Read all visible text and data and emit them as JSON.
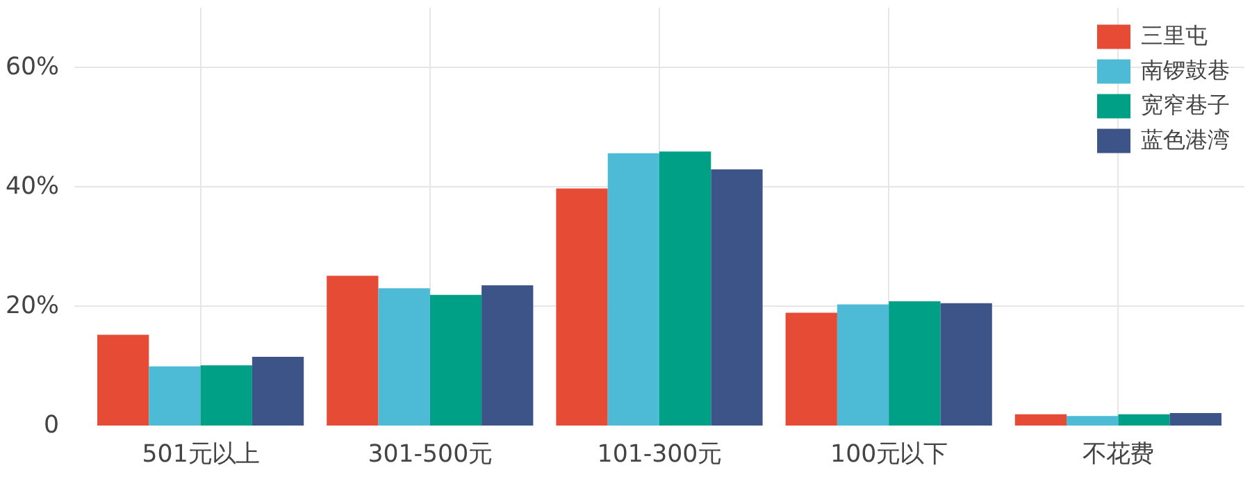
{
  "chart_data": {
    "type": "bar",
    "categories": [
      "501元以上",
      "301-500元",
      "101-300元",
      "100元以下",
      "不花费"
    ],
    "series": [
      {
        "name": "三里屯",
        "color": "#e64b35",
        "values": [
          15.2,
          25.1,
          39.7,
          18.9,
          1.9
        ]
      },
      {
        "name": "南锣鼓巷",
        "color": "#4dbbd5",
        "values": [
          9.9,
          23.0,
          45.6,
          20.3,
          1.6
        ]
      },
      {
        "name": "宽窄巷子",
        "color": "#00a087",
        "values": [
          10.1,
          21.9,
          45.9,
          20.8,
          1.9
        ]
      },
      {
        "name": "蓝色港湾",
        "color": "#3c5488",
        "values": [
          11.5,
          23.5,
          42.9,
          20.5,
          2.1
        ]
      }
    ],
    "ylim": [
      0,
      70
    ],
    "yticks": [
      {
        "value": 0,
        "label": "0"
      },
      {
        "value": 20,
        "label": "20%"
      },
      {
        "value": 40,
        "label": "40%"
      },
      {
        "value": 60,
        "label": "60%"
      }
    ],
    "grid": true,
    "legend": "top right"
  }
}
